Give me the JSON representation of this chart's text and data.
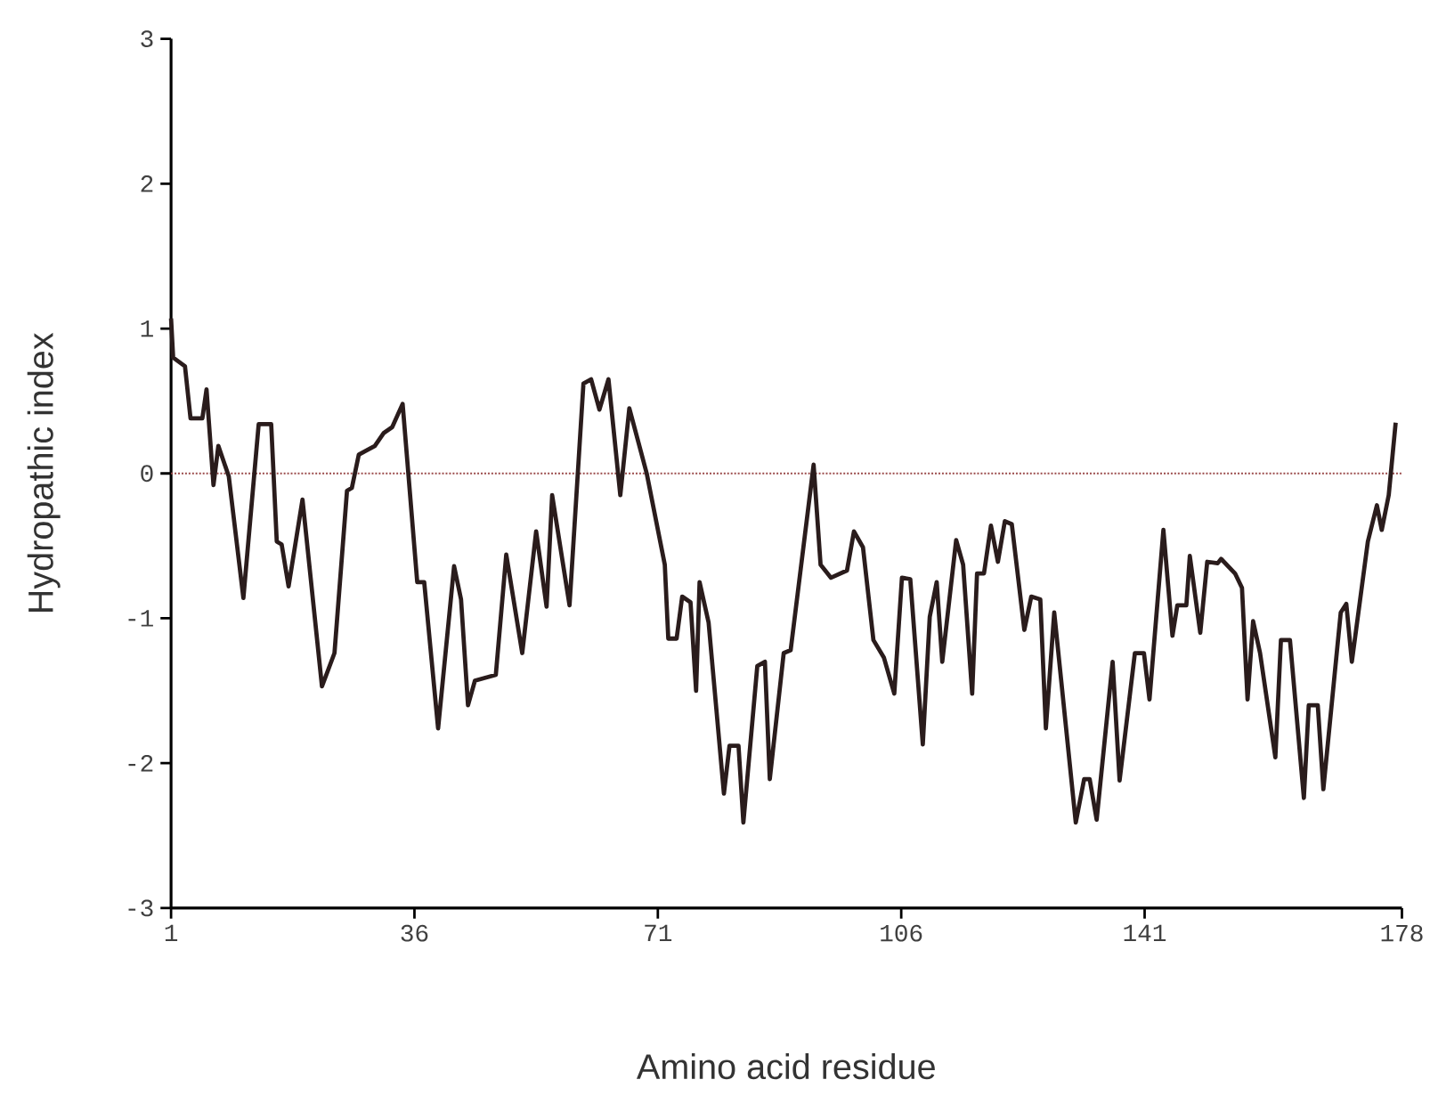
{
  "chart_data": {
    "type": "line",
    "xlabel": "Amino acid residue",
    "ylabel": "Hydropathic index",
    "color": "#2a1c1c",
    "line_style": "solid",
    "xlim": [
      1,
      178
    ],
    "ylim": [
      -3,
      3
    ],
    "xticks": [
      1,
      36,
      71,
      106,
      141,
      178
    ],
    "yticks": [
      -3,
      -2,
      -1,
      0,
      1,
      2,
      3
    ],
    "ref_lines": [
      {
        "axis": "y",
        "value": 0,
        "color": "#9a4a4a",
        "line_style": "dotted"
      }
    ],
    "x": [
      1,
      1.3,
      3.0,
      3.8,
      5.5,
      6.1,
      7.1,
      7.8,
      9.3,
      11.4,
      13.6,
      15.4,
      16.2,
      16.9,
      17.9,
      19.9,
      22.7,
      24.5,
      26.3,
      27.0,
      28.0,
      30.3,
      31.6,
      32.8,
      34.3,
      36.4,
      37.4,
      39.4,
      41.7,
      42.7,
      43.7,
      44.7,
      47.7,
      49.2,
      51.5,
      53.5,
      55.0,
      55.8,
      58.3,
      60.3,
      61.4,
      62.6,
      63.9,
      65.6,
      66.9,
      69.4,
      72.0,
      72.5,
      73.7,
      74.5,
      75.7,
      76.5,
      77.0,
      78.3,
      80.5,
      81.3,
      82.6,
      83.3,
      85.3,
      86.4,
      87.1,
      89.1,
      90.1,
      93.4,
      94.4,
      95.9,
      98.2,
      99.2,
      100.5,
      102.0,
      103.5,
      105.0,
      106.1,
      107.3,
      109.1,
      110.1,
      111.1,
      111.9,
      113.9,
      114.9,
      116.2,
      116.9,
      117.9,
      118.9,
      119.9,
      120.9,
      121.9,
      123.7,
      124.7,
      126.0,
      126.8,
      128.0,
      131.1,
      132.3,
      133.1,
      134.1,
      136.4,
      137.4,
      139.6,
      140.9,
      141.7,
      143.7,
      145.0,
      145.7,
      147.0,
      147.5,
      149.0,
      150.0,
      151.5,
      152.0,
      154.0,
      155.0,
      155.8,
      156.6,
      157.6,
      159.8,
      160.6,
      161.9,
      163.9,
      164.6,
      165.9,
      166.7,
      169.2,
      170.0,
      170.8,
      173.1,
      174.4,
      175.1,
      176.1,
      177.1
    ],
    "values": [
      1.07,
      0.8,
      0.74,
      0.38,
      0.38,
      0.58,
      -0.08,
      0.19,
      -0.02,
      -0.86,
      0.34,
      0.34,
      -0.47,
      -0.49,
      -0.78,
      -0.18,
      -1.47,
      -1.24,
      -0.12,
      -0.1,
      0.13,
      0.19,
      0.28,
      0.32,
      0.48,
      -0.75,
      -0.75,
      -1.76,
      -0.64,
      -0.87,
      -1.6,
      -1.43,
      -1.39,
      -0.56,
      -1.24,
      -0.4,
      -0.92,
      -0.15,
      -0.91,
      0.62,
      0.65,
      0.44,
      0.65,
      -0.15,
      0.45,
      0.0,
      -0.63,
      -1.14,
      -1.14,
      -0.85,
      -0.89,
      -1.5,
      -0.75,
      -1.03,
      -2.21,
      -1.88,
      -1.88,
      -2.41,
      -1.33,
      -1.3,
      -2.11,
      -1.24,
      -1.22,
      0.06,
      -0.63,
      -0.72,
      -0.67,
      -0.4,
      -0.51,
      -1.15,
      -1.27,
      -1.52,
      -0.72,
      -0.73,
      -1.87,
      -0.99,
      -0.75,
      -1.3,
      -0.46,
      -0.63,
      -1.52,
      -0.69,
      -0.69,
      -0.36,
      -0.61,
      -0.33,
      -0.35,
      -1.08,
      -0.85,
      -0.87,
      -1.76,
      -0.96,
      -2.41,
      -2.11,
      -2.11,
      -2.39,
      -1.3,
      -2.12,
      -1.24,
      -1.24,
      -1.56,
      -0.39,
      -1.12,
      -0.91,
      -0.91,
      -0.57,
      -1.1,
      -0.61,
      -0.62,
      -0.59,
      -0.69,
      -0.79,
      -1.56,
      -1.02,
      -1.24,
      -1.96,
      -1.15,
      -1.15,
      -2.24,
      -1.6,
      -1.6,
      -2.18,
      -0.96,
      -0.9,
      -1.3,
      -0.47,
      -0.22,
      -0.39,
      -0.15,
      0.35
    ]
  }
}
